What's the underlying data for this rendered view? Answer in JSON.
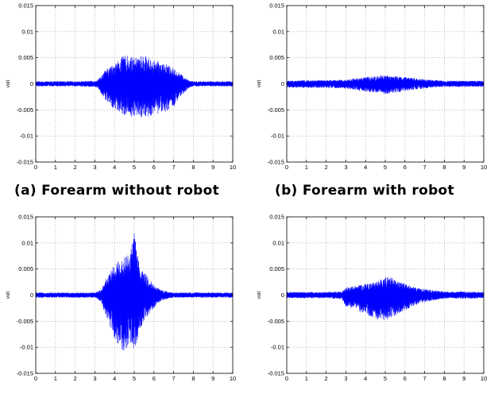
{
  "figure": {
    "captions": [
      "(a) Forearm without robot",
      "(b) Forearm with robot"
    ]
  },
  "colors": {
    "signal": "#0000ff",
    "axes": "#000000",
    "grid": "#999999"
  },
  "chart_data": [
    {
      "type": "line",
      "caption": "(a) Forearm without robot",
      "xlabel": "sec",
      "ylabel": "volt",
      "xlim": [
        0,
        10
      ],
      "ylim": [
        -0.015,
        0.015
      ],
      "xticks": [
        "0",
        "1",
        "2",
        "3",
        "4",
        "5",
        "6",
        "7",
        "8",
        "9",
        "10"
      ],
      "yticks": [
        "-0.015",
        "-0.01",
        "-0.005",
        "0",
        "0.005",
        "0.01",
        "0.015"
      ],
      "grid": true,
      "series": [
        {
          "color": "#0000ff",
          "envelope": {
            "t": [
              0,
              1,
              2,
              3,
              3.2,
              3.5,
              4,
              4.5,
              5,
              5.5,
              6,
              6.5,
              7,
              7.5,
              7.8,
              8,
              9,
              10
            ],
            "upper": [
              0.0005,
              0.0005,
              0.0005,
              0.0006,
              0.001,
              0.0025,
              0.004,
              0.0055,
              0.005,
              0.0055,
              0.0045,
              0.004,
              0.003,
              0.0015,
              0.0007,
              0.0005,
              0.0005,
              0.0005
            ],
            "lower": [
              -0.0005,
              -0.0005,
              -0.0005,
              -0.0006,
              -0.001,
              -0.003,
              -0.005,
              -0.006,
              -0.0065,
              -0.0065,
              -0.006,
              -0.0055,
              -0.0045,
              -0.002,
              -0.0008,
              -0.0005,
              -0.0005,
              -0.0005
            ]
          }
        }
      ]
    },
    {
      "type": "line",
      "caption": "(b) Forearm with robot",
      "xlabel": "sec",
      "ylabel": "volt",
      "xlim": [
        0,
        10
      ],
      "ylim": [
        -0.015,
        0.015
      ],
      "xticks": [
        "0",
        "1",
        "2",
        "3",
        "4",
        "5",
        "6",
        "7",
        "8",
        "9",
        "10"
      ],
      "yticks": [
        "-0.015",
        "-0.01",
        "-0.005",
        "0",
        "0.005",
        "0.01",
        "0.015"
      ],
      "grid": true,
      "series": [
        {
          "color": "#0000ff",
          "envelope": {
            "t": [
              0,
              1,
              2,
              3,
              3.5,
              4,
              4.5,
              5,
              5.5,
              6,
              6.5,
              7,
              7.5,
              8,
              9,
              10
            ],
            "upper": [
              0.0006,
              0.0007,
              0.0007,
              0.0008,
              0.0011,
              0.0013,
              0.0015,
              0.0017,
              0.0015,
              0.0013,
              0.0011,
              0.0009,
              0.0007,
              0.0006,
              0.0006,
              0.0006
            ],
            "lower": [
              -0.0007,
              -0.0008,
              -0.0008,
              -0.0009,
              -0.0012,
              -0.0015,
              -0.0018,
              -0.002,
              -0.0017,
              -0.0014,
              -0.0011,
              -0.0009,
              -0.0007,
              -0.0006,
              -0.0006,
              -0.0006
            ]
          }
        }
      ]
    },
    {
      "type": "line",
      "xlabel": "sec",
      "ylabel": "volt",
      "xlim": [
        0,
        10
      ],
      "ylim": [
        -0.015,
        0.015
      ],
      "xticks": [
        "0",
        "1",
        "2",
        "3",
        "4",
        "5",
        "6",
        "7",
        "8",
        "9",
        "10"
      ],
      "yticks": [
        "-0.015",
        "-0.01",
        "-0.005",
        "0",
        "0.005",
        "0.01",
        "0.015"
      ],
      "grid": true,
      "series": [
        {
          "color": "#0000ff",
          "envelope": {
            "t": [
              0,
              1,
              2,
              3,
              3.3,
              3.6,
              4,
              4.5,
              4.8,
              5,
              5.3,
              5.6,
              6,
              6.3,
              6.6,
              7,
              8,
              9,
              10
            ],
            "upper": [
              0.0005,
              0.0005,
              0.0005,
              0.0005,
              0.001,
              0.0035,
              0.006,
              0.0075,
              0.008,
              0.0125,
              0.005,
              0.004,
              0.002,
              0.0012,
              0.0008,
              0.0005,
              0.0005,
              0.0005,
              0.0005
            ],
            "lower": [
              -0.0005,
              -0.0005,
              -0.0005,
              -0.0005,
              -0.0012,
              -0.0045,
              -0.0085,
              -0.011,
              -0.0095,
              -0.011,
              -0.0065,
              -0.0045,
              -0.0025,
              -0.0012,
              -0.0008,
              -0.0005,
              -0.0005,
              -0.0005,
              -0.0005
            ]
          }
        }
      ]
    },
    {
      "type": "line",
      "xlabel": "sec",
      "ylabel": "volt",
      "xlim": [
        0,
        10
      ],
      "ylim": [
        -0.015,
        0.015
      ],
      "xticks": [
        "0",
        "1",
        "2",
        "3",
        "4",
        "5",
        "6",
        "7",
        "8",
        "9",
        "10"
      ],
      "yticks": [
        "-0.015",
        "-0.01",
        "-0.005",
        "0",
        "0.005",
        "0.01",
        "0.015"
      ],
      "grid": true,
      "series": [
        {
          "color": "#0000ff",
          "envelope": {
            "t": [
              0,
              1,
              2,
              2.8,
              3,
              3.5,
              4,
              4.5,
              5,
              5.3,
              5.6,
              6,
              6.5,
              7,
              7.5,
              8,
              9,
              10
            ],
            "upper": [
              0.0006,
              0.0006,
              0.0006,
              0.0007,
              0.0015,
              0.0018,
              0.0022,
              0.0025,
              0.0035,
              0.0035,
              0.0028,
              0.0022,
              0.0015,
              0.0012,
              0.0009,
              0.0007,
              0.0007,
              0.0006
            ],
            "lower": [
              -0.0006,
              -0.0006,
              -0.0006,
              -0.0008,
              -0.0022,
              -0.0028,
              -0.0038,
              -0.0045,
              -0.005,
              -0.0045,
              -0.0038,
              -0.003,
              -0.002,
              -0.0014,
              -0.001,
              -0.0007,
              -0.0007,
              -0.0006
            ]
          }
        }
      ]
    }
  ]
}
